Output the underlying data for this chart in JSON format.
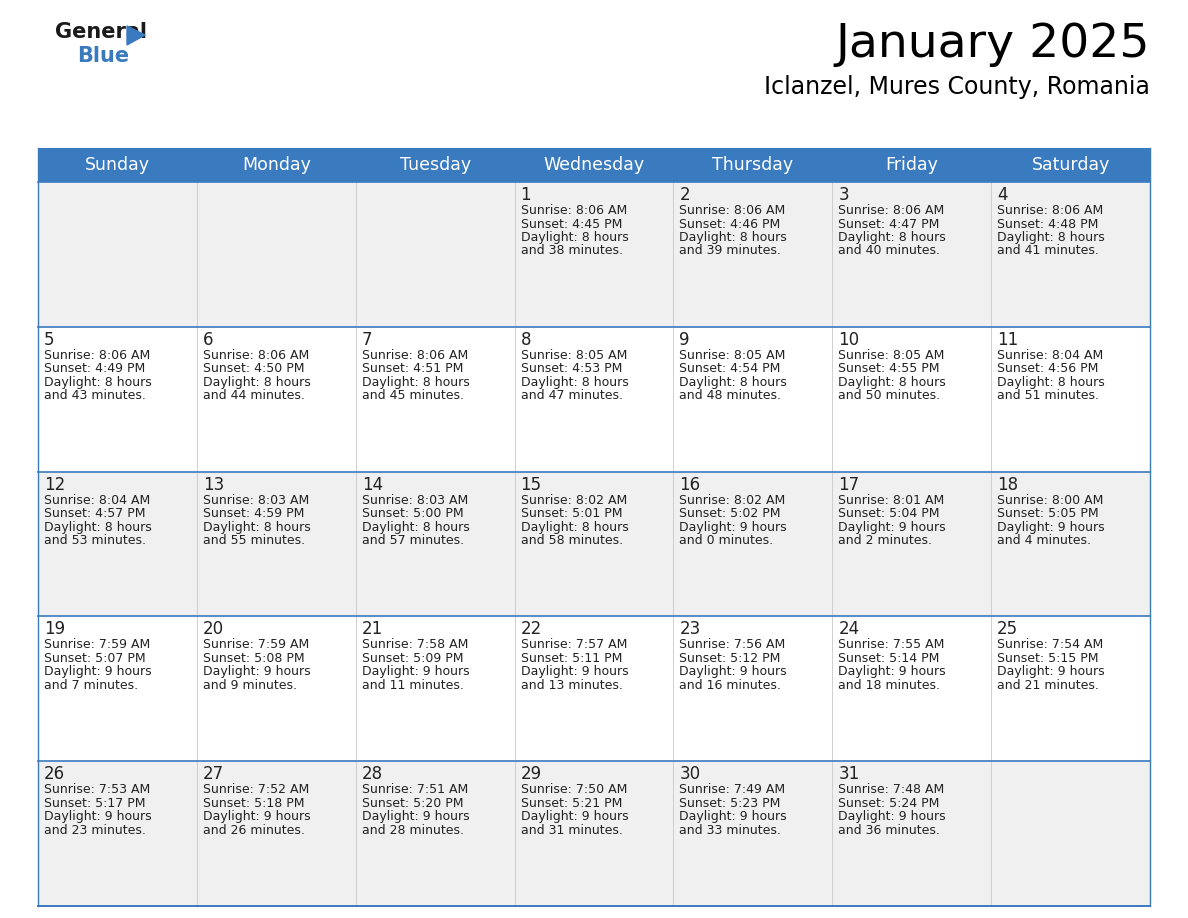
{
  "title": "January 2025",
  "subtitle": "Iclanzel, Mures County, Romania",
  "header_bg_color": "#3a7abf",
  "header_text_color": "#ffffff",
  "cell_bg_color_odd": "#f0f0f0",
  "cell_bg_color_even": "#ffffff",
  "divider_color": "#3a7abf",
  "text_color": "#222222",
  "days_of_week": [
    "Sunday",
    "Monday",
    "Tuesday",
    "Wednesday",
    "Thursday",
    "Friday",
    "Saturday"
  ],
  "weeks": [
    [
      {
        "day": "",
        "sunrise": "",
        "sunset": "",
        "daylight": ""
      },
      {
        "day": "",
        "sunrise": "",
        "sunset": "",
        "daylight": ""
      },
      {
        "day": "",
        "sunrise": "",
        "sunset": "",
        "daylight": ""
      },
      {
        "day": "1",
        "sunrise": "8:06 AM",
        "sunset": "4:45 PM",
        "daylight": "8 hours and 38 minutes."
      },
      {
        "day": "2",
        "sunrise": "8:06 AM",
        "sunset": "4:46 PM",
        "daylight": "8 hours and 39 minutes."
      },
      {
        "day": "3",
        "sunrise": "8:06 AM",
        "sunset": "4:47 PM",
        "daylight": "8 hours and 40 minutes."
      },
      {
        "day": "4",
        "sunrise": "8:06 AM",
        "sunset": "4:48 PM",
        "daylight": "8 hours and 41 minutes."
      }
    ],
    [
      {
        "day": "5",
        "sunrise": "8:06 AM",
        "sunset": "4:49 PM",
        "daylight": "8 hours and 43 minutes."
      },
      {
        "day": "6",
        "sunrise": "8:06 AM",
        "sunset": "4:50 PM",
        "daylight": "8 hours and 44 minutes."
      },
      {
        "day": "7",
        "sunrise": "8:06 AM",
        "sunset": "4:51 PM",
        "daylight": "8 hours and 45 minutes."
      },
      {
        "day": "8",
        "sunrise": "8:05 AM",
        "sunset": "4:53 PM",
        "daylight": "8 hours and 47 minutes."
      },
      {
        "day": "9",
        "sunrise": "8:05 AM",
        "sunset": "4:54 PM",
        "daylight": "8 hours and 48 minutes."
      },
      {
        "day": "10",
        "sunrise": "8:05 AM",
        "sunset": "4:55 PM",
        "daylight": "8 hours and 50 minutes."
      },
      {
        "day": "11",
        "sunrise": "8:04 AM",
        "sunset": "4:56 PM",
        "daylight": "8 hours and 51 minutes."
      }
    ],
    [
      {
        "day": "12",
        "sunrise": "8:04 AM",
        "sunset": "4:57 PM",
        "daylight": "8 hours and 53 minutes."
      },
      {
        "day": "13",
        "sunrise": "8:03 AM",
        "sunset": "4:59 PM",
        "daylight": "8 hours and 55 minutes."
      },
      {
        "day": "14",
        "sunrise": "8:03 AM",
        "sunset": "5:00 PM",
        "daylight": "8 hours and 57 minutes."
      },
      {
        "day": "15",
        "sunrise": "8:02 AM",
        "sunset": "5:01 PM",
        "daylight": "8 hours and 58 minutes."
      },
      {
        "day": "16",
        "sunrise": "8:02 AM",
        "sunset": "5:02 PM",
        "daylight": "9 hours and 0 minutes."
      },
      {
        "day": "17",
        "sunrise": "8:01 AM",
        "sunset": "5:04 PM",
        "daylight": "9 hours and 2 minutes."
      },
      {
        "day": "18",
        "sunrise": "8:00 AM",
        "sunset": "5:05 PM",
        "daylight": "9 hours and 4 minutes."
      }
    ],
    [
      {
        "day": "19",
        "sunrise": "7:59 AM",
        "sunset": "5:07 PM",
        "daylight": "9 hours and 7 minutes."
      },
      {
        "day": "20",
        "sunrise": "7:59 AM",
        "sunset": "5:08 PM",
        "daylight": "9 hours and 9 minutes."
      },
      {
        "day": "21",
        "sunrise": "7:58 AM",
        "sunset": "5:09 PM",
        "daylight": "9 hours and 11 minutes."
      },
      {
        "day": "22",
        "sunrise": "7:57 AM",
        "sunset": "5:11 PM",
        "daylight": "9 hours and 13 minutes."
      },
      {
        "day": "23",
        "sunrise": "7:56 AM",
        "sunset": "5:12 PM",
        "daylight": "9 hours and 16 minutes."
      },
      {
        "day": "24",
        "sunrise": "7:55 AM",
        "sunset": "5:14 PM",
        "daylight": "9 hours and 18 minutes."
      },
      {
        "day": "25",
        "sunrise": "7:54 AM",
        "sunset": "5:15 PM",
        "daylight": "9 hours and 21 minutes."
      }
    ],
    [
      {
        "day": "26",
        "sunrise": "7:53 AM",
        "sunset": "5:17 PM",
        "daylight": "9 hours and 23 minutes."
      },
      {
        "day": "27",
        "sunrise": "7:52 AM",
        "sunset": "5:18 PM",
        "daylight": "9 hours and 26 minutes."
      },
      {
        "day": "28",
        "sunrise": "7:51 AM",
        "sunset": "5:20 PM",
        "daylight": "9 hours and 28 minutes."
      },
      {
        "day": "29",
        "sunrise": "7:50 AM",
        "sunset": "5:21 PM",
        "daylight": "9 hours and 31 minutes."
      },
      {
        "day": "30",
        "sunrise": "7:49 AM",
        "sunset": "5:23 PM",
        "daylight": "9 hours and 33 minutes."
      },
      {
        "day": "31",
        "sunrise": "7:48 AM",
        "sunset": "5:24 PM",
        "daylight": "9 hours and 36 minutes."
      },
      {
        "day": "",
        "sunrise": "",
        "sunset": "",
        "daylight": ""
      }
    ]
  ]
}
